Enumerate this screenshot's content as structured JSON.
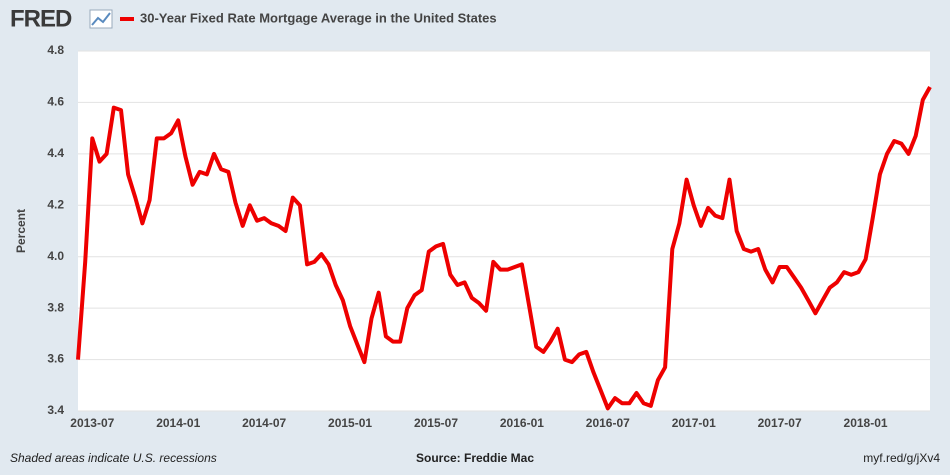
{
  "chart_data": {
    "type": "line",
    "logo": "FRED",
    "title": "30-Year Fixed Rate Mortgage Average in the United States",
    "y_label": "Percent",
    "note": "Shaded areas indicate U.S. recessions",
    "source": "Source: Freddie Mac",
    "link": "myf.red/g/jXv4",
    "ylim": [
      3.4,
      4.8
    ],
    "yticks": [
      3.4,
      3.6,
      3.8,
      {
        "value": 4,
        "label": "4.0"
      },
      4.2,
      4.4,
      4.6,
      4.8
    ],
    "grid": true,
    "categories": [
      null,
      null,
      "2013-07",
      null,
      null,
      null,
      null,
      null,
      null,
      null,
      null,
      null,
      null,
      null,
      "2014-01",
      null,
      null,
      null,
      null,
      null,
      null,
      null,
      null,
      null,
      null,
      null,
      "2014-07",
      null,
      null,
      null,
      null,
      null,
      null,
      null,
      null,
      null,
      null,
      null,
      "2015-01",
      null,
      null,
      null,
      null,
      null,
      null,
      null,
      null,
      null,
      null,
      null,
      "2015-07",
      null,
      null,
      null,
      null,
      null,
      null,
      null,
      null,
      null,
      null,
      null,
      "2016-01",
      null,
      null,
      null,
      null,
      null,
      null,
      null,
      null,
      null,
      null,
      null,
      "2016-07",
      null,
      null,
      null,
      null,
      null,
      null,
      null,
      null,
      null,
      null,
      null,
      "2017-01",
      null,
      null,
      null,
      null,
      null,
      null,
      null,
      null,
      null,
      null,
      null,
      "2017-07",
      null,
      null,
      null,
      null,
      null,
      null,
      null,
      null,
      null,
      null,
      null,
      "2018-01",
      null,
      null,
      null,
      null,
      null,
      null,
      null,
      null,
      null
    ],
    "series": [
      {
        "name": "30-Year Fixed Rate Mortgage Average in the United States",
        "color": "#ee0000",
        "values": [
          3.6,
          3.98,
          4.46,
          4.37,
          4.4,
          4.58,
          4.57,
          4.32,
          4.23,
          4.13,
          4.22,
          4.46,
          4.46,
          4.48,
          4.53,
          4.39,
          4.28,
          4.33,
          4.32,
          4.4,
          4.34,
          4.33,
          4.21,
          4.12,
          4.2,
          4.14,
          4.15,
          4.13,
          4.12,
          4.1,
          4.23,
          4.2,
          3.97,
          3.98,
          4.01,
          3.97,
          3.89,
          3.83,
          3.73,
          3.66,
          3.59,
          3.76,
          3.86,
          3.69,
          3.67,
          3.67,
          3.8,
          3.85,
          3.87,
          4.02,
          4.04,
          4.05,
          3.93,
          3.89,
          3.9,
          3.84,
          3.82,
          3.79,
          3.98,
          3.95,
          3.95,
          3.96,
          3.97,
          3.81,
          3.65,
          3.63,
          3.67,
          3.72,
          3.6,
          3.59,
          3.62,
          3.63,
          3.55,
          3.48,
          3.41,
          3.45,
          3.43,
          3.43,
          3.47,
          3.43,
          3.42,
          3.52,
          3.57,
          4.03,
          4.13,
          4.3,
          4.2,
          4.12,
          4.19,
          4.16,
          4.15,
          4.3,
          4.1,
          4.03,
          4.02,
          4.03,
          3.95,
          3.9,
          3.96,
          3.96,
          3.92,
          3.88,
          3.83,
          3.78,
          3.83,
          3.88,
          3.9,
          3.94,
          3.93,
          3.94,
          3.99,
          4.15,
          4.32,
          4.4,
          4.45,
          4.44,
          4.4,
          4.47,
          4.61,
          4.66
        ]
      }
    ]
  }
}
